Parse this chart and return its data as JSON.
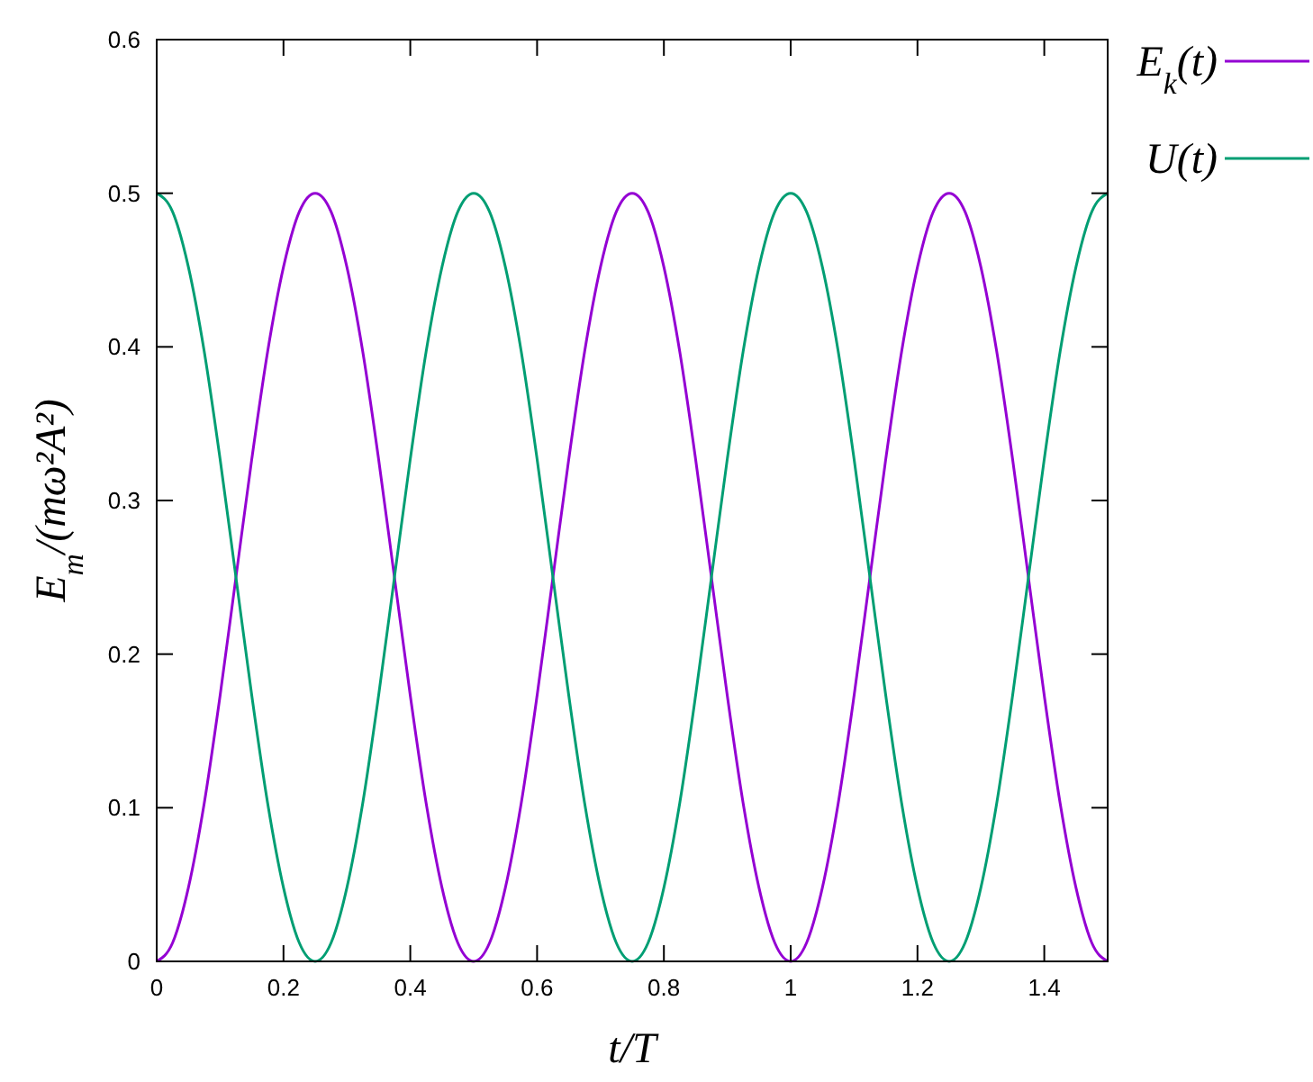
{
  "chart_data": {
    "type": "line",
    "xlabel": "t/T",
    "ylabel": "E$_{m}$/(mω²A²)",
    "xlim": [
      0,
      1.5
    ],
    "ylim": [
      0,
      0.6
    ],
    "xticks": [
      0,
      0.2,
      0.4,
      0.6,
      0.8,
      1,
      1.2,
      1.4
    ],
    "yticks": [
      0,
      0.1,
      0.2,
      0.3,
      0.4,
      0.5,
      0.6
    ],
    "grid": false,
    "legend": "top right",
    "line_style": "solid",
    "x": [
      0,
      0.025,
      0.05,
      0.075,
      0.1,
      0.125,
      0.15,
      0.175,
      0.2,
      0.225,
      0.25,
      0.275,
      0.3,
      0.325,
      0.35,
      0.375,
      0.4,
      0.425,
      0.45,
      0.475,
      0.5,
      0.525,
      0.55,
      0.575,
      0.6,
      0.625,
      0.65,
      0.675,
      0.7,
      0.725,
      0.75,
      0.775,
      0.8,
      0.825,
      0.85,
      0.875,
      0.9,
      0.925,
      0.95,
      0.975,
      1,
      1.025,
      1.05,
      1.075,
      1.1,
      1.125,
      1.15,
      1.175,
      1.2,
      1.225,
      1.25,
      1.275,
      1.3,
      1.325,
      1.35,
      1.375,
      1.4,
      1.425,
      1.45,
      1.475,
      1.5
    ],
    "series": [
      {
        "name": "E$_{k}$(t)",
        "color": "#9400d3",
        "values": [
          0,
          0.012,
          0.048,
          0.103,
          0.173,
          0.25,
          0.327,
          0.397,
          0.452,
          0.488,
          0.5,
          0.488,
          0.452,
          0.397,
          0.327,
          0.25,
          0.173,
          0.103,
          0.048,
          0.012,
          0,
          0.012,
          0.048,
          0.103,
          0.173,
          0.25,
          0.327,
          0.397,
          0.452,
          0.488,
          0.5,
          0.488,
          0.452,
          0.397,
          0.327,
          0.25,
          0.173,
          0.103,
          0.048,
          0.012,
          0,
          0.012,
          0.048,
          0.103,
          0.173,
          0.25,
          0.327,
          0.397,
          0.452,
          0.488,
          0.5,
          0.488,
          0.452,
          0.397,
          0.327,
          0.25,
          0.173,
          0.103,
          0.048,
          0.012,
          0
        ]
      },
      {
        "name": "U(t)",
        "color": "#009e73",
        "values": [
          0.5,
          0.488,
          0.452,
          0.397,
          0.327,
          0.25,
          0.173,
          0.103,
          0.048,
          0.012,
          0,
          0.012,
          0.048,
          0.103,
          0.173,
          0.25,
          0.327,
          0.397,
          0.452,
          0.488,
          0.5,
          0.488,
          0.452,
          0.397,
          0.327,
          0.25,
          0.173,
          0.103,
          0.048,
          0.012,
          0,
          0.012,
          0.048,
          0.103,
          0.173,
          0.25,
          0.327,
          0.397,
          0.452,
          0.488,
          0.5,
          0.488,
          0.452,
          0.397,
          0.327,
          0.25,
          0.173,
          0.103,
          0.048,
          0.012,
          0,
          0.012,
          0.048,
          0.103,
          0.173,
          0.25,
          0.327,
          0.397,
          0.452,
          0.488,
          0.5
        ]
      }
    ]
  }
}
